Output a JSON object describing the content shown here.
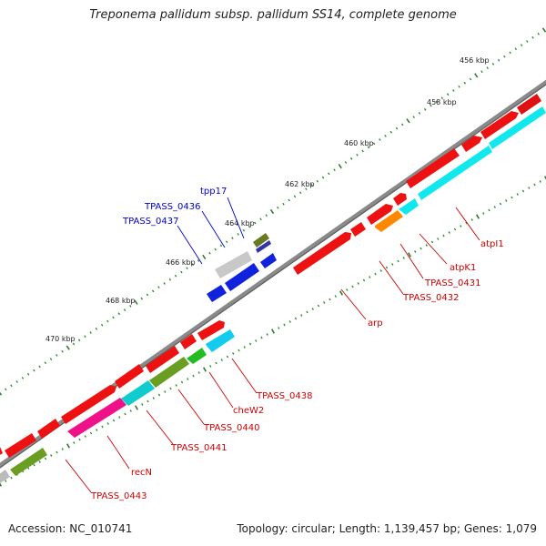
{
  "title": "Treponema pallidum subsp. pallidum SS14, complete genome",
  "footer": {
    "accession_text": "Accession: NC_010741",
    "summary_text": "Topology: circular; Length: 1,139,457 bp; Genes: 1,079"
  },
  "colors": {
    "backbone": "#888888",
    "tick_major": "#2f7d2f",
    "tick_minor": "#2f8f2f",
    "label_forward": "#0000cc",
    "label_reverse": "#cc0000"
  },
  "kbp_labels": [
    "456 kbp",
    "458 kbp",
    "460 kbp",
    "462 kbp",
    "464 kbp",
    "466 kbp",
    "468 kbp",
    "470 kbp"
  ],
  "forward_gene_labels": [
    "tpp17",
    "TPASS_0436",
    "TPASS_0437"
  ],
  "reverse_gene_labels": [
    "atpI1",
    "atpK1",
    "TPASS_0431",
    "TPASS_0432",
    "arp",
    "TPASS_0438",
    "cheW2",
    "TPASS_0440",
    "TPASS_0441",
    "recN",
    "TPASS_0443"
  ]
}
